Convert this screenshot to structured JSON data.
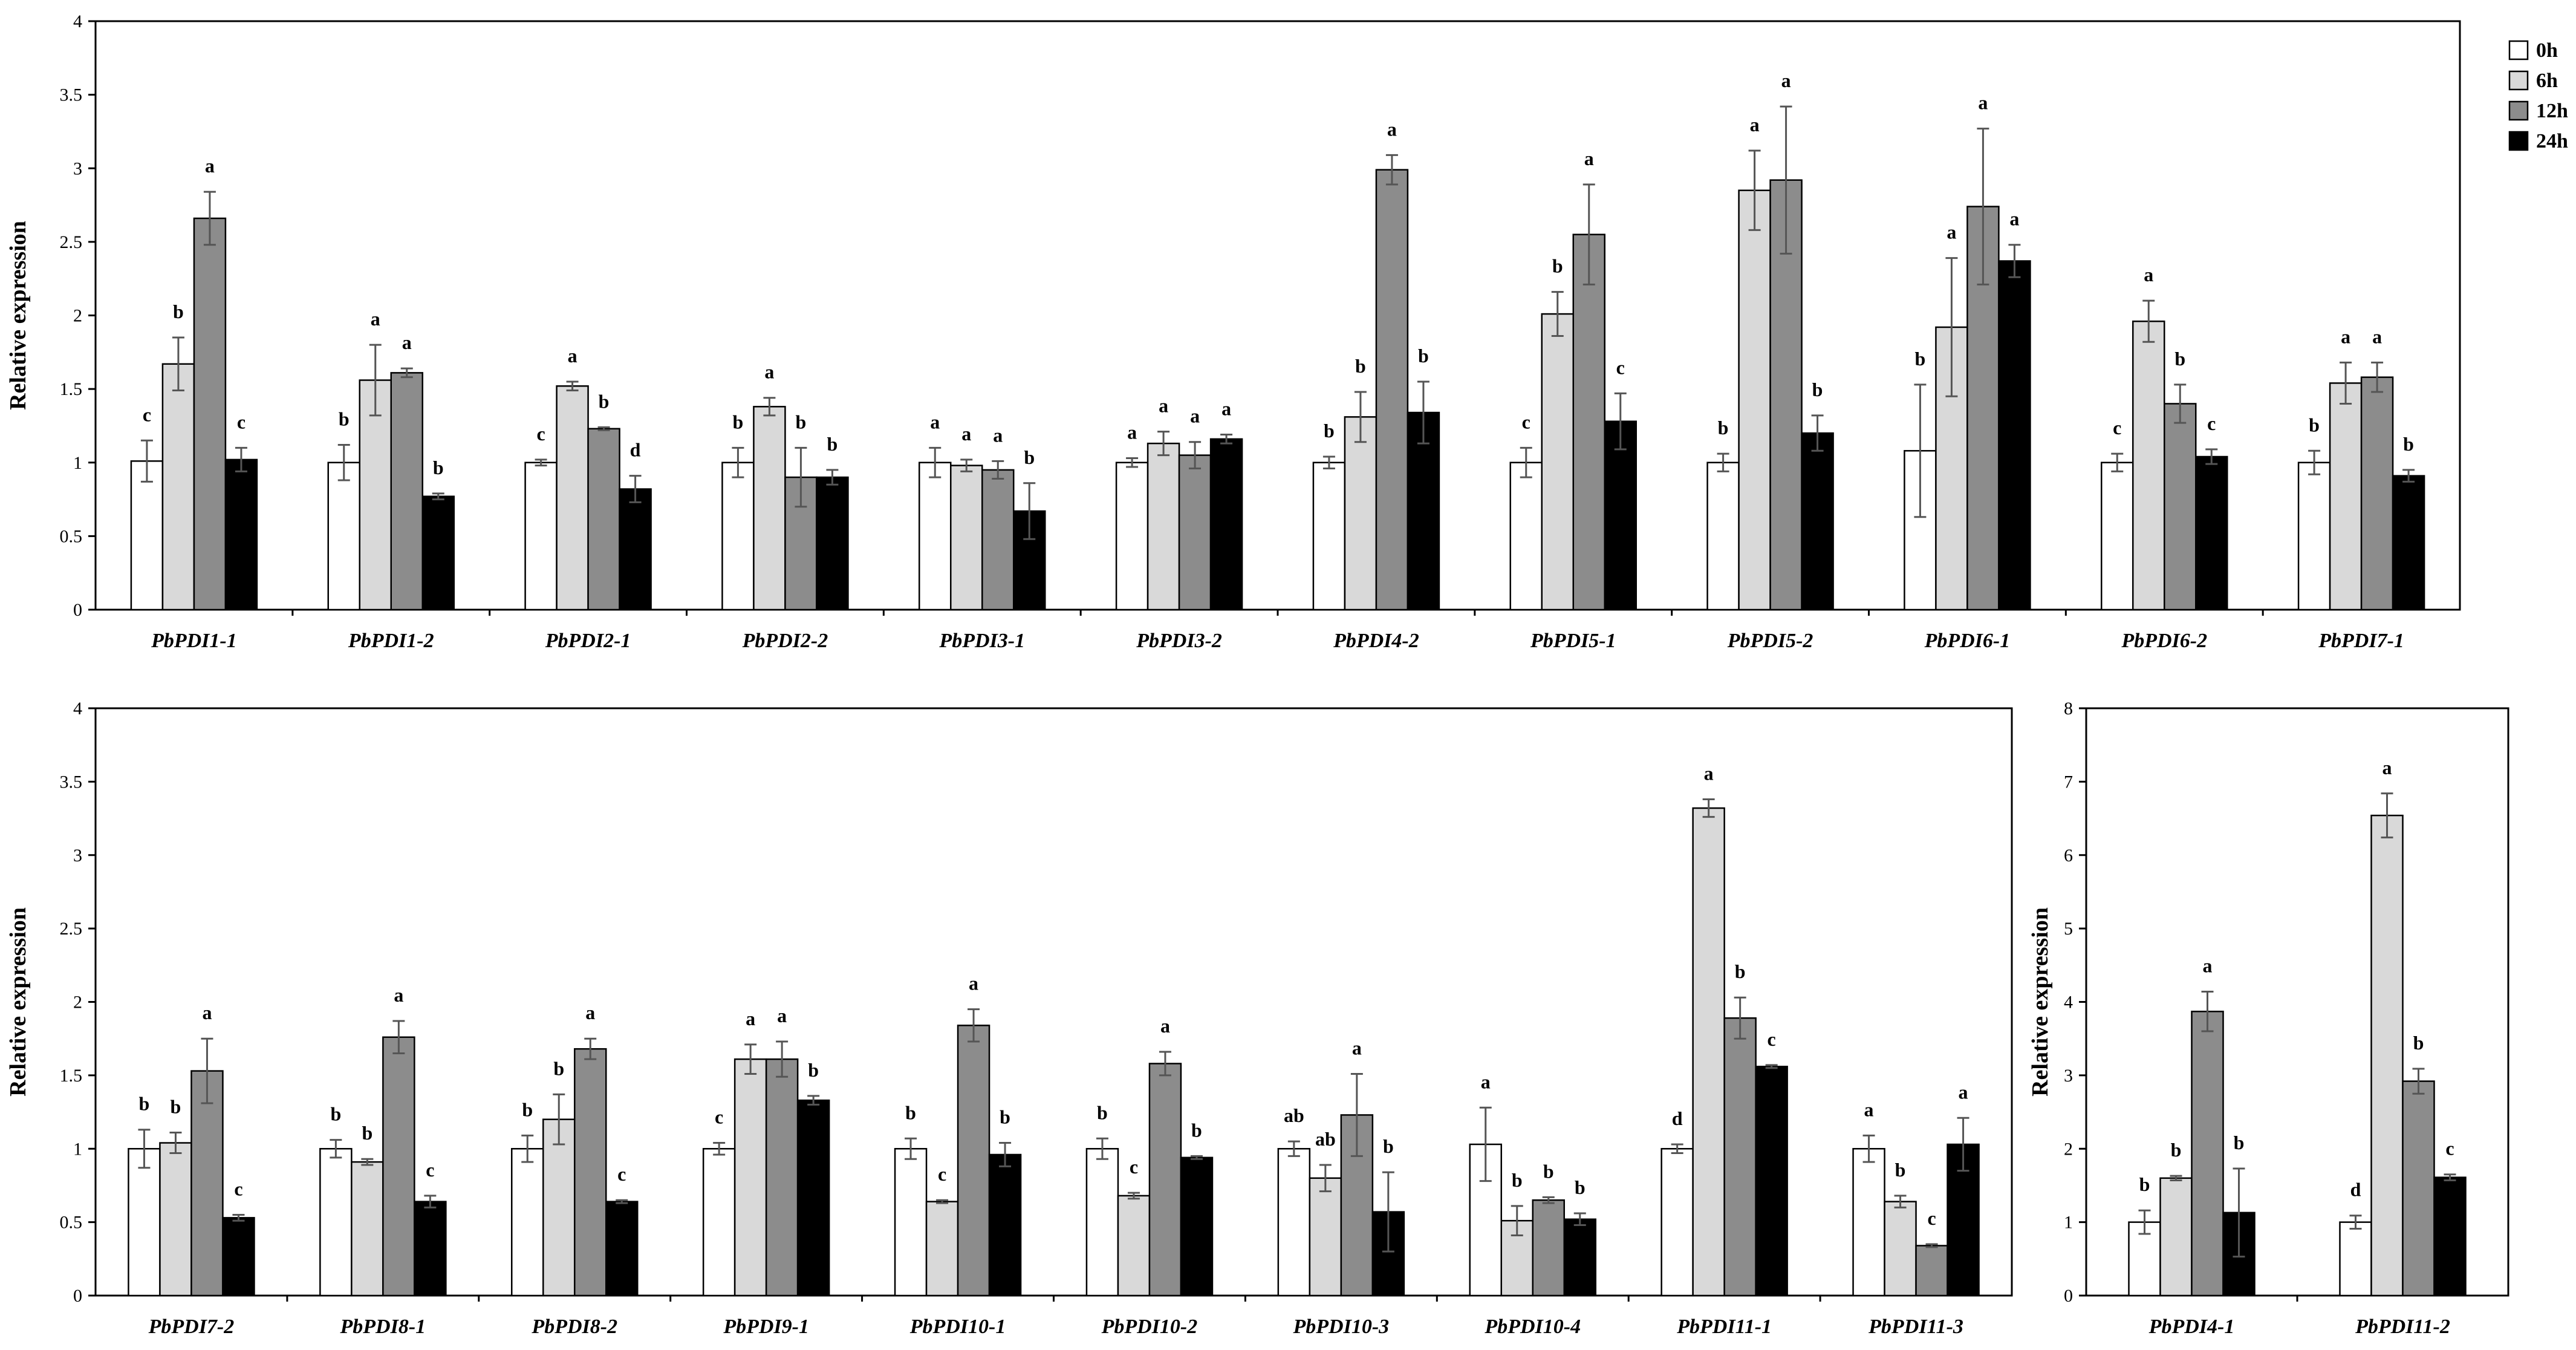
{
  "chart_data": [
    {
      "type": "bar",
      "ylabel": "Relative expression",
      "ylim": [
        0,
        4
      ],
      "yticks": [
        0,
        0.5,
        1,
        1.5,
        2,
        2.5,
        3,
        3.5,
        4
      ],
      "categories": [
        "PbPDI1-1",
        "PbPDI1-2",
        "PbPDI2-1",
        "PbPDI2-2",
        "PbPDI3-1",
        "PbPDI3-2",
        "PbPDI4-2",
        "PbPDI5-1",
        "PbPDI5-2",
        "PbPDI6-1",
        "PbPDI6-2",
        "PbPDI7-1"
      ],
      "series": [
        {
          "name": "0h",
          "color": "#ffffff",
          "values": [
            1.01,
            1.0,
            1.0,
            1.0,
            1.0,
            1.0,
            1.0,
            1.0,
            1.0,
            1.08,
            1.0,
            1.0
          ],
          "errors": [
            0.14,
            0.12,
            0.02,
            0.1,
            0.1,
            0.03,
            0.04,
            0.1,
            0.06,
            0.45,
            0.06,
            0.08
          ],
          "letters": [
            "c",
            "b",
            "c",
            "b",
            "a",
            "a",
            "b",
            "c",
            "b",
            "b",
            "c",
            "b"
          ]
        },
        {
          "name": "6h",
          "color": "#d9d9d9",
          "values": [
            1.67,
            1.56,
            1.52,
            1.38,
            0.98,
            1.13,
            1.31,
            2.01,
            2.85,
            1.92,
            1.96,
            1.54
          ],
          "errors": [
            0.18,
            0.24,
            0.03,
            0.06,
            0.04,
            0.08,
            0.17,
            0.15,
            0.27,
            0.47,
            0.14,
            0.14
          ],
          "letters": [
            "b",
            "a",
            "a",
            "a",
            "a",
            "a",
            "b",
            "b",
            "a",
            "a",
            "a",
            "a"
          ]
        },
        {
          "name": "12h",
          "color": "#8c8c8c",
          "values": [
            2.66,
            1.61,
            1.23,
            0.9,
            0.95,
            1.05,
            2.99,
            2.55,
            2.92,
            2.74,
            1.4,
            1.58
          ],
          "errors": [
            0.18,
            0.03,
            0.01,
            0.2,
            0.06,
            0.09,
            0.1,
            0.34,
            0.5,
            0.53,
            0.13,
            0.1
          ],
          "letters": [
            "a",
            "a",
            "b",
            "b",
            "a",
            "a",
            "a",
            "a",
            "a",
            "a",
            "b",
            "a"
          ]
        },
        {
          "name": "24h",
          "color": "#000000",
          "values": [
            1.02,
            0.77,
            0.82,
            0.9,
            0.67,
            1.16,
            1.34,
            1.28,
            1.2,
            2.37,
            1.04,
            0.91
          ],
          "errors": [
            0.08,
            0.02,
            0.09,
            0.05,
            0.19,
            0.03,
            0.21,
            0.19,
            0.12,
            0.11,
            0.05,
            0.04
          ],
          "letters": [
            "c",
            "b",
            "d",
            "b",
            "b",
            "a",
            "b",
            "c",
            "b",
            "a",
            "c",
            "b"
          ]
        }
      ]
    },
    {
      "type": "bar",
      "ylabel": "Relative expression",
      "ylim": [
        0,
        4
      ],
      "yticks": [
        0,
        0.5,
        1,
        1.5,
        2,
        2.5,
        3,
        3.5,
        4
      ],
      "categories": [
        "PbPDI7-2",
        "PbPDI8-1",
        "PbPDI8-2",
        "PbPDI9-1",
        "PbPDI10-1",
        "PbPDI10-2",
        "PbPDI10-3",
        "PbPDI10-4",
        "PbPDI11-1",
        "PbPDI11-3"
      ],
      "series": [
        {
          "name": "0h",
          "color": "#ffffff",
          "values": [
            1.0,
            1.0,
            1.0,
            1.0,
            1.0,
            1.0,
            1.0,
            1.03,
            1.0,
            1.0
          ],
          "errors": [
            0.13,
            0.06,
            0.09,
            0.04,
            0.07,
            0.07,
            0.05,
            0.25,
            0.03,
            0.09
          ],
          "letters": [
            "b",
            "b",
            "b",
            "c",
            "b",
            "b",
            "ab",
            "a",
            "d",
            "a"
          ]
        },
        {
          "name": "6h",
          "color": "#d9d9d9",
          "values": [
            1.04,
            0.91,
            1.2,
            1.61,
            0.64,
            0.68,
            0.8,
            0.51,
            3.32,
            0.64
          ],
          "errors": [
            0.07,
            0.02,
            0.17,
            0.1,
            0.01,
            0.02,
            0.09,
            0.1,
            0.06,
            0.04
          ],
          "letters": [
            "b",
            "b",
            "b",
            "a",
            "c",
            "c",
            "ab",
            "b",
            "a",
            "b"
          ]
        },
        {
          "name": "12h",
          "color": "#8c8c8c",
          "values": [
            1.53,
            1.76,
            1.68,
            1.61,
            1.84,
            1.58,
            1.23,
            0.65,
            1.89,
            0.34
          ],
          "errors": [
            0.22,
            0.11,
            0.07,
            0.12,
            0.11,
            0.08,
            0.28,
            0.02,
            0.14,
            0.01
          ],
          "letters": [
            "a",
            "a",
            "a",
            "a",
            "a",
            "a",
            "a",
            "b",
            "b",
            "c"
          ]
        },
        {
          "name": "24h",
          "color": "#000000",
          "values": [
            0.53,
            0.64,
            0.64,
            1.33,
            0.96,
            0.94,
            0.57,
            0.52,
            1.56,
            1.03
          ],
          "errors": [
            0.02,
            0.04,
            0.01,
            0.03,
            0.08,
            0.01,
            0.27,
            0.04,
            0.01,
            0.18
          ],
          "letters": [
            "c",
            "c",
            "c",
            "b",
            "b",
            "b",
            "b",
            "b",
            "c",
            "a"
          ]
        }
      ]
    },
    {
      "type": "bar",
      "ylabel": "Relative expression",
      "ylim": [
        0,
        8
      ],
      "yticks": [
        0,
        1,
        2,
        3,
        4,
        5,
        6,
        7,
        8
      ],
      "categories": [
        "PbPDI4-1",
        "PbPDI11-2"
      ],
      "series": [
        {
          "name": "0h",
          "color": "#ffffff",
          "values": [
            1.0,
            1.0
          ],
          "errors": [
            0.16,
            0.09
          ],
          "letters": [
            "b",
            "d"
          ]
        },
        {
          "name": "6h",
          "color": "#d9d9d9",
          "values": [
            1.6,
            6.54
          ],
          "errors": [
            0.03,
            0.3
          ],
          "letters": [
            "b",
            "a"
          ]
        },
        {
          "name": "12h",
          "color": "#8c8c8c",
          "values": [
            3.87,
            2.92
          ],
          "errors": [
            0.27,
            0.17
          ],
          "letters": [
            "a",
            "b"
          ]
        },
        {
          "name": "24h",
          "color": "#000000",
          "values": [
            1.13,
            1.61
          ],
          "errors": [
            0.6,
            0.04
          ],
          "letters": [
            "b",
            "c"
          ]
        }
      ]
    }
  ],
  "legend": {
    "entries": [
      {
        "name": "0h",
        "color": "#ffffff"
      },
      {
        "name": "6h",
        "color": "#d9d9d9"
      },
      {
        "name": "12h",
        "color": "#8c8c8c"
      },
      {
        "name": "24h",
        "color": "#000000"
      }
    ]
  }
}
